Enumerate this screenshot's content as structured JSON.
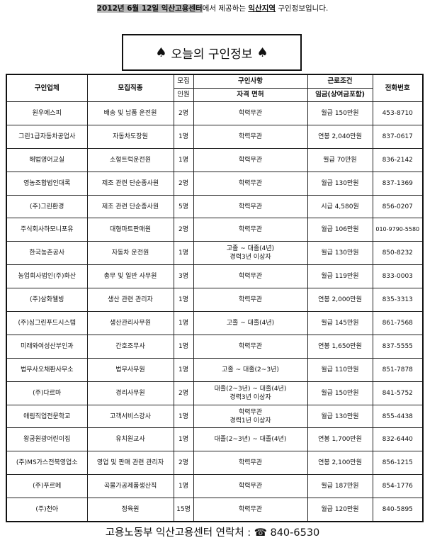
{
  "notice": {
    "date_center": "2012년 6월 12일 익산고용센터",
    "mid": "에서 제공하는",
    "region": "익산지역",
    "tail": "구인정보입니다."
  },
  "title": {
    "spade": "♠",
    "text": "오늘의 구인정보"
  },
  "table": {
    "headers": {
      "company": "구인업체",
      "job": "모집직종",
      "count_top": "모집",
      "count_bottom": "인원",
      "req_top": "구인사항",
      "req_bottom": "자격 면허",
      "cond_top": "근로조건",
      "cond_bottom": "임금(상여금포함)",
      "phone": "전화번호"
    },
    "rows": [
      {
        "company": "원우에스피",
        "job": "배송 및 납품 운전원",
        "count": "2명",
        "req": "학력무관",
        "wage": "월급 150만원",
        "phone": "453-8710"
      },
      {
        "company": "그린1급자동차공업사",
        "job": "자동차도장원",
        "count": "1명",
        "req": "학력무관",
        "wage": "연봉 2,040만원",
        "phone": "837-0617"
      },
      {
        "company": "해법영어교실",
        "job": "소형트럭운전원",
        "count": "1명",
        "req": "학력무관",
        "wage": "월급 70만원",
        "phone": "836-2142"
      },
      {
        "company": "영농조합법인대록",
        "job": "제조 관련 단순종사원",
        "count": "2명",
        "req": "학력무관",
        "wage": "월급 130만원",
        "phone": "837-1369"
      },
      {
        "company": "(주)그린환경",
        "job": "제조 관련 단순종사원",
        "count": "5명",
        "req": "학력무관",
        "wage": "시급 4,580원",
        "phone": "856-0207"
      },
      {
        "company": "주식회사하모니포유",
        "job": "대형마트판매원",
        "count": "2명",
        "req": "학력무관",
        "wage": "월급 106만원",
        "phone": "010-9790-5580"
      },
      {
        "company": "한국농촌공사",
        "job": "자동차 운전원",
        "count": "1명",
        "req": "고졸 ~ 대졸(4년)\n경력3년 이상자",
        "wage": "월급 130만원",
        "phone": "850-8232"
      },
      {
        "company": "농업회사법인(주)화산",
        "job": "총무 및 일반 사무원",
        "count": "3명",
        "req": "학력무관",
        "wage": "월급 119만원",
        "phone": "833-0003"
      },
      {
        "company": "(주)삼화웰빙",
        "job": "생산 관련 관리자",
        "count": "1명",
        "req": "학력무관",
        "wage": "연봉 2,000만원",
        "phone": "835-3313"
      },
      {
        "company": "(주)싱그린푸드시스템",
        "job": "생산관리사무원",
        "count": "1명",
        "req": "고졸 ~ 대졸(4년)",
        "wage": "월급 145만원",
        "phone": "861-7568"
      },
      {
        "company": "미래와여성산부인과",
        "job": "간호조무사",
        "count": "1명",
        "req": "학력무관",
        "wage": "연봉 1,650만원",
        "phone": "837-5555"
      },
      {
        "company": "법무사오채환사무소",
        "job": "법무사무원",
        "count": "1명",
        "req": "고졸 ~ 대졸(2~3년)",
        "wage": "월급 110만원",
        "phone": "851-7878"
      },
      {
        "company": "(주)다르마",
        "job": "경리사무원",
        "count": "2명",
        "req": "대졸(2~3년) ~ 대졸(4년)\n경력3년 이상자",
        "wage": "월급 150만원",
        "phone": "841-5752"
      },
      {
        "company": "애림직업전문학교",
        "job": "고객서비스강사",
        "count": "1명",
        "req": "학력무관\n경력1년 이상자",
        "wage": "월급 130만원",
        "phone": "855-4438"
      },
      {
        "company": "왕궁원광어린이집",
        "job": "유치원교사",
        "count": "1명",
        "req": "대졸(2~3년) ~ 대졸(4년)",
        "wage": "연봉 1,700만원",
        "phone": "832-6440"
      },
      {
        "company": "(주)MS가스전북영업소",
        "job": "영업 및 판매 관련 관리자",
        "count": "2명",
        "req": "학력무관",
        "wage": "연봉 2,100만원",
        "phone": "856-1215"
      },
      {
        "company": "(주)푸르메",
        "job": "곡물가공제품생산직",
        "count": "1명",
        "req": "학력무관",
        "wage": "월급 187만원",
        "phone": "854-1776"
      },
      {
        "company": "(주)천아",
        "job": "정육원",
        "count": "15명",
        "req": "학력무관",
        "wage": "월급 120만원",
        "phone": "840-5895"
      }
    ]
  },
  "footer": {
    "text": "고용노동부 익산고용센터 연락처 :",
    "phone_icon": "phone-icon",
    "phone": "840-6530"
  }
}
